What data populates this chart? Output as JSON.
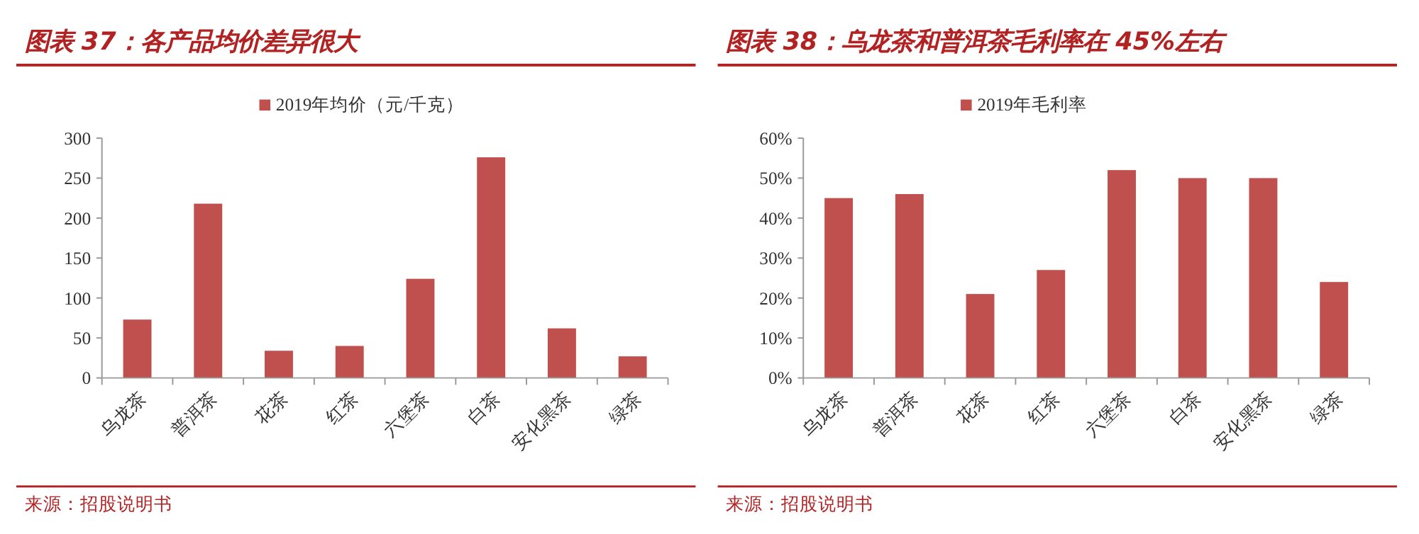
{
  "chart_data": [
    {
      "type": "bar",
      "title": "图表 37：各产品均价差异很大",
      "categories": [
        "乌龙茶",
        "普洱茶",
        "花茶",
        "红茶",
        "六堡茶",
        "白茶",
        "安化黑茶",
        "绿茶"
      ],
      "series": [
        {
          "name": "2019年均价（元/千克）",
          "color": "#c0504d",
          "values": [
            73,
            218,
            34,
            40,
            124,
            276,
            62,
            27
          ]
        }
      ],
      "ylim": [
        0,
        300
      ],
      "yticks": [
        0,
        50,
        100,
        150,
        200,
        250,
        300
      ],
      "grid": false,
      "legend": "top",
      "annotations": [
        "来源：招股说明书"
      ]
    },
    {
      "type": "bar",
      "title": "图表 38：乌龙茶和普洱茶毛利率在 45%左右",
      "categories": [
        "乌龙茶",
        "普洱茶",
        "花茶",
        "红茶",
        "六堡茶",
        "白茶",
        "安化黑茶",
        "绿茶"
      ],
      "series": [
        {
          "name": "2019年毛利率",
          "color": "#c0504d",
          "values": [
            45,
            46,
            21,
            27,
            52,
            50,
            50,
            24
          ]
        }
      ],
      "ylim": [
        0,
        60
      ],
      "yticks": [
        {
          "value": 0,
          "label": "0%"
        },
        {
          "value": 10,
          "label": "10%"
        },
        {
          "value": 20,
          "label": "20%"
        },
        {
          "value": 30,
          "label": "30%"
        },
        {
          "value": 40,
          "label": "40%"
        },
        {
          "value": 50,
          "label": "50%"
        },
        {
          "value": 60,
          "label": "60%"
        }
      ],
      "grid": false,
      "legend": "top",
      "annotations": [
        "来源：招股说明书"
      ]
    }
  ]
}
